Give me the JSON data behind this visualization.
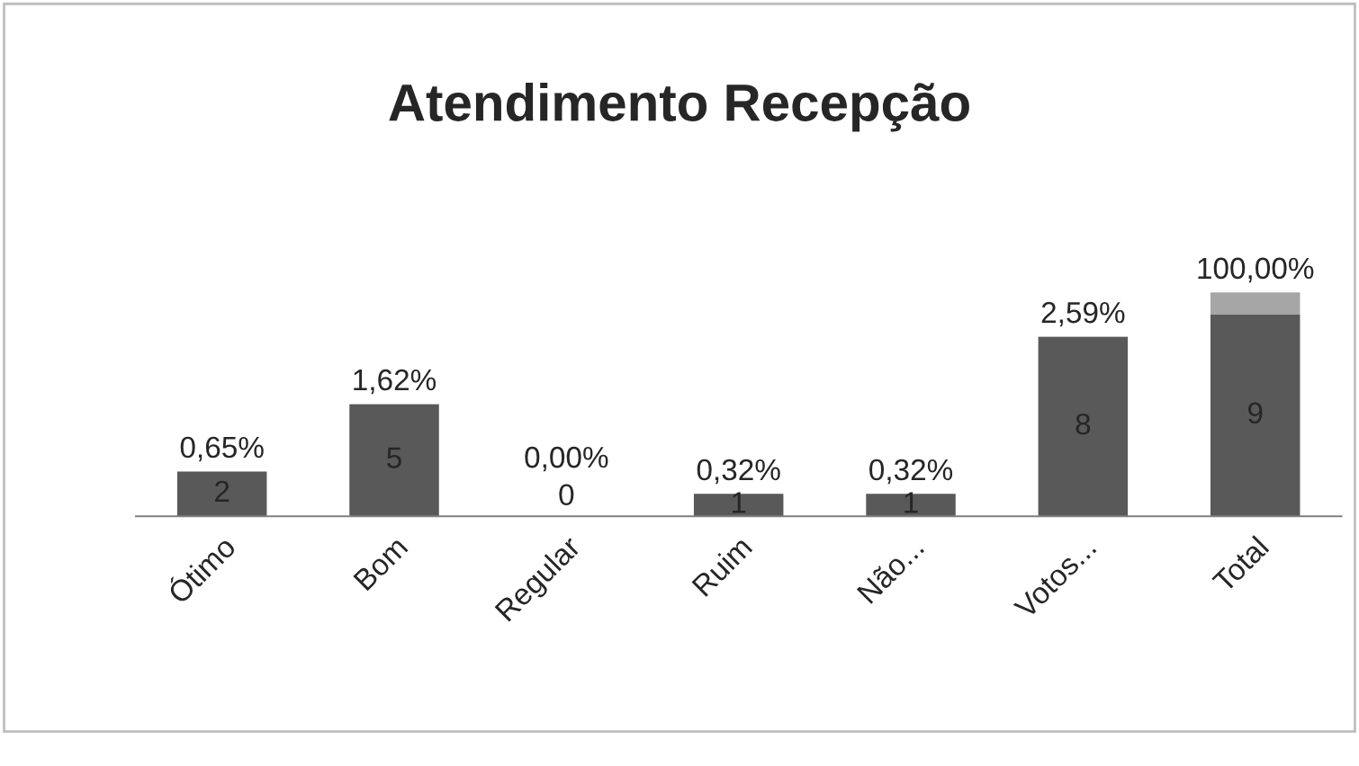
{
  "chart_data": {
    "type": "bar",
    "title": "Atendimento Recepção",
    "stacked": true,
    "categories": [
      "Ótimo",
      "Bom",
      "Regular",
      "Ruim",
      "Não...",
      "Votos...",
      "Total"
    ],
    "series": [
      {
        "color": "#595959",
        "values": [
          2,
          5,
          0,
          1,
          1,
          8,
          9
        ],
        "value_labels": [
          "2",
          "5",
          "0",
          "1",
          "1",
          "8",
          "9"
        ]
      },
      {
        "color": "#a6a6a6",
        "values": [
          0.0065,
          0.0162,
          0,
          0.0032,
          0.0032,
          0.0259,
          1
        ],
        "value_labels": [
          "0,65%",
          "1,62%",
          "0,00%",
          "0,32%",
          "0,32%",
          "2,59%",
          "100,00%"
        ]
      }
    ],
    "grid": false,
    "legend": false
  }
}
